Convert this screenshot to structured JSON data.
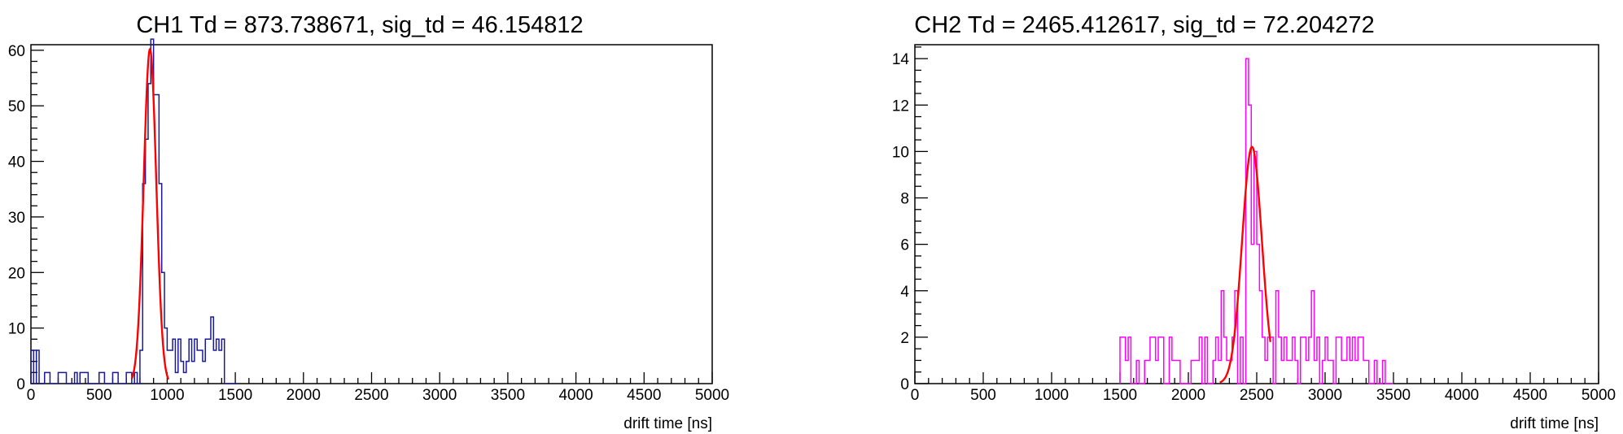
{
  "chart_data": [
    {
      "type": "histogram",
      "title": "CH1 Td = 873.738671, sig_td = 46.154812",
      "xlabel": "drift time [ns]",
      "ylabel": "",
      "xlim": [
        0,
        5000
      ],
      "ylim": [
        0,
        61
      ],
      "xticks": [
        0,
        500,
        1000,
        1500,
        2000,
        2500,
        3000,
        3500,
        4000,
        4500,
        5000
      ],
      "yticks": [
        0,
        10,
        20,
        30,
        40,
        50,
        60
      ],
      "grid": false,
      "bin_width": 20,
      "hist_color": "#1a1a99",
      "fit_color": "#ff0000",
      "hist": {
        "name": "CH1",
        "x_start": 0,
        "counts": [
          6,
          0,
          6,
          0,
          0,
          2,
          2,
          0,
          0,
          0,
          2,
          2,
          2,
          0,
          0,
          0,
          2,
          0,
          2,
          2,
          2,
          0,
          0,
          0,
          0,
          2,
          2,
          0,
          0,
          0,
          2,
          2,
          0,
          0,
          0,
          2,
          2,
          0,
          2,
          0,
          6,
          36,
          44,
          54,
          62,
          52,
          52,
          36,
          20,
          10,
          6,
          6,
          8,
          2,
          8,
          4,
          2,
          4,
          8,
          4,
          8,
          6,
          6,
          4,
          8,
          8,
          12,
          6,
          8,
          6,
          8,
          0,
          0,
          0,
          0,
          0
        ]
      },
      "fit": {
        "function": "gaus",
        "constant": 60.2,
        "mean": 873.738671,
        "sigma": 46.154812,
        "range": [
          740,
          1010
        ]
      }
    },
    {
      "type": "histogram",
      "title": "CH2 Td = 2465.412617, sig_td = 72.204272",
      "xlabel": "drift time [ns]",
      "ylabel": "",
      "xlim": [
        0,
        5000
      ],
      "ylim": [
        0,
        14.6
      ],
      "xticks": [
        0,
        500,
        1000,
        1500,
        2000,
        2500,
        3000,
        3500,
        4000,
        4500,
        5000
      ],
      "yticks": [
        0,
        2,
        4,
        6,
        8,
        10,
        12,
        14
      ],
      "grid": false,
      "bin_width": 20,
      "hist_color": "#ff00ff",
      "fit_color": "#ff0000",
      "hist": {
        "name": "CH2",
        "x_start": 1500,
        "counts": [
          2,
          2,
          1,
          2,
          0,
          0,
          1,
          0,
          0,
          1,
          1,
          2,
          2,
          1,
          2,
          2,
          0,
          0,
          2,
          1,
          1,
          1,
          0,
          0,
          0,
          0,
          1,
          1,
          1,
          2,
          0,
          2,
          0,
          0,
          1,
          2,
          1,
          4,
          2,
          1,
          1,
          2,
          4,
          0,
          2,
          0,
          14,
          12,
          6,
          10,
          6,
          4,
          2,
          1,
          2,
          2,
          0,
          4,
          2,
          1,
          2,
          1,
          1,
          2,
          1,
          0,
          2,
          2,
          1,
          2,
          4,
          1,
          2,
          0,
          1,
          2,
          1,
          1,
          0,
          2,
          2,
          1,
          1,
          2,
          1,
          2,
          1,
          2,
          2,
          1,
          1,
          0,
          0,
          1,
          0,
          0,
          1,
          0,
          0,
          0
        ]
      },
      "fit": {
        "function": "gaus",
        "constant": 10.2,
        "mean": 2465.412617,
        "sigma": 72.204272,
        "range": [
          2230,
          2600
        ]
      }
    }
  ]
}
